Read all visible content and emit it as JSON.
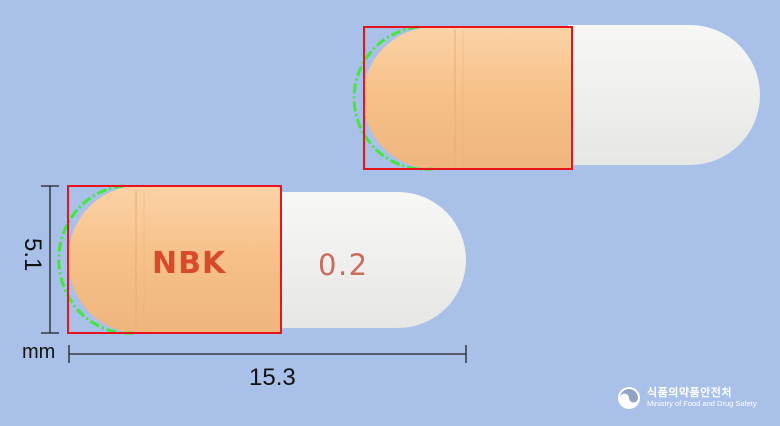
{
  "imprints": {
    "side_a": "NBK",
    "side_b": "0.2"
  },
  "dimensions": {
    "width": "5.1",
    "length": "15.3",
    "unit": "mm"
  },
  "watermark": {
    "line1": "식품의약품안전처",
    "line2": "Ministry of Food and Drug Safety"
  },
  "colors": {
    "background": "#a9c1e8",
    "cap": "#f6c48e",
    "body": "#f0f0ee",
    "imprint": "#d84b2a",
    "box": "#e8141c",
    "contour": "#43e63a"
  },
  "icons": [
    "emblem-icon"
  ]
}
